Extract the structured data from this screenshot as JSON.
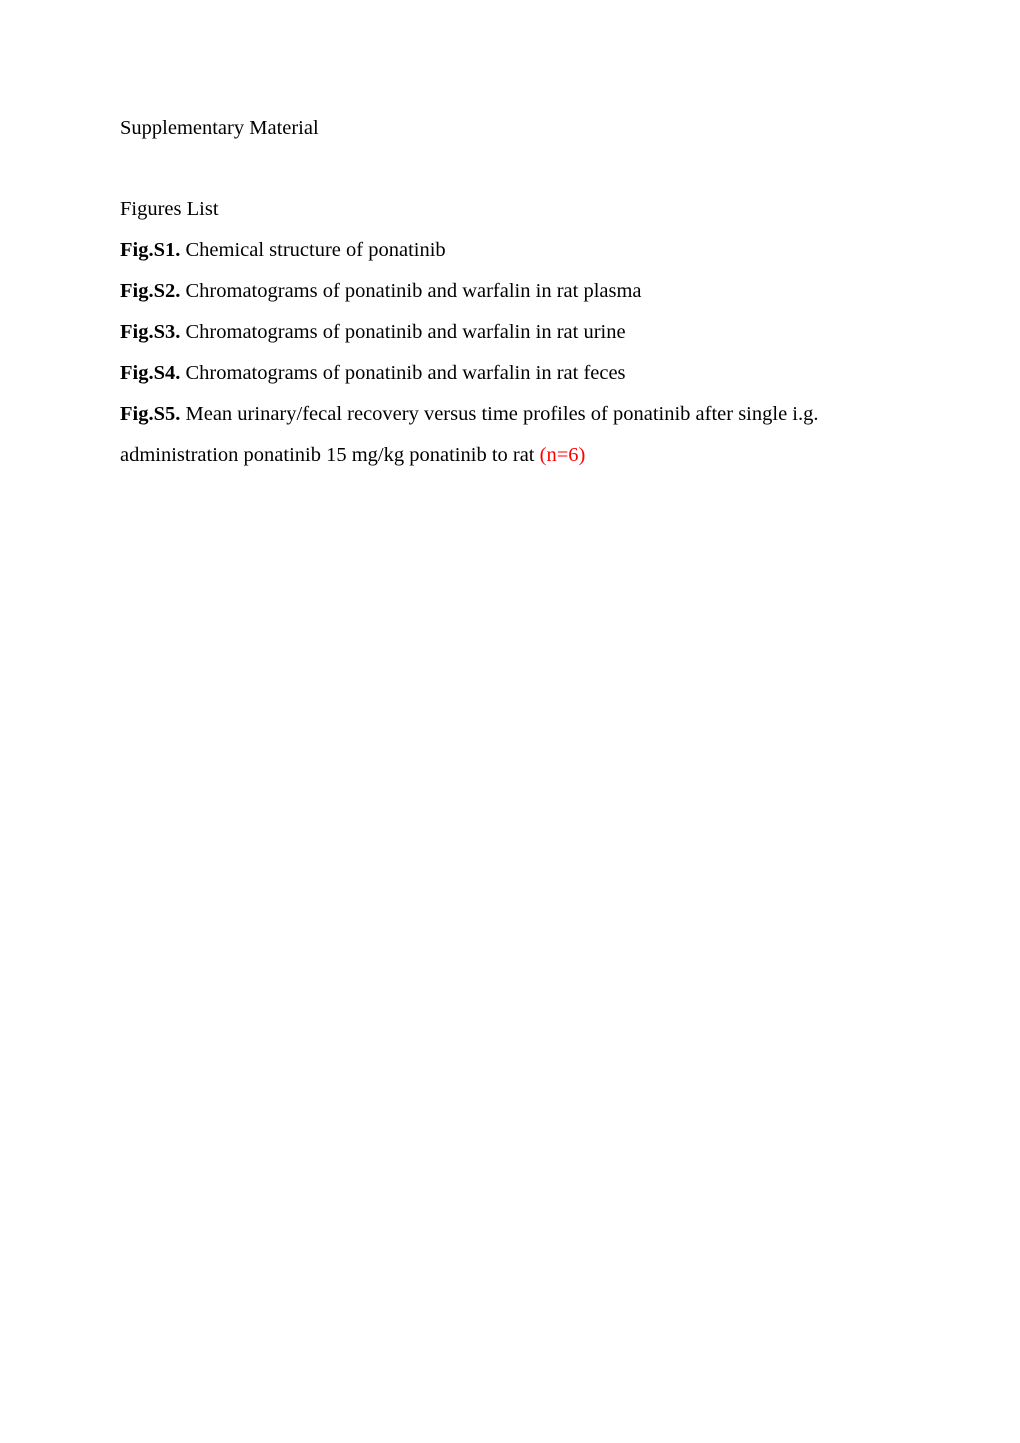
{
  "header": {
    "title": "Supplementary Material"
  },
  "figures_list": {
    "heading": "Figures List",
    "items": [
      {
        "label": "Fig.S1.",
        "text": " Chemical structure of ponatinib"
      },
      {
        "label": "Fig.S2.",
        "text": " Chromatograms of ponatinib and warfalin in rat plasma"
      },
      {
        "label": "Fig.S3.",
        "text": " Chromatograms of ponatinib and warfalin in rat urine"
      },
      {
        "label": "Fig.S4.",
        "text": " Chromatograms of ponatinib and warfalin in rat feces"
      },
      {
        "label": "Fig.S5.",
        "text": " Mean urinary/fecal recovery versus time profiles of ponatinib after single i.g. administration ponatinib 15 mg/kg ponatinib to rat ",
        "red_suffix": "(n=6)"
      }
    ]
  },
  "style": {
    "background_color": "#ffffff",
    "text_color": "#000000",
    "accent_color": "#ff0000",
    "font_family": "Times New Roman",
    "body_font_size_pt": 12,
    "line_spacing": 2.0
  }
}
